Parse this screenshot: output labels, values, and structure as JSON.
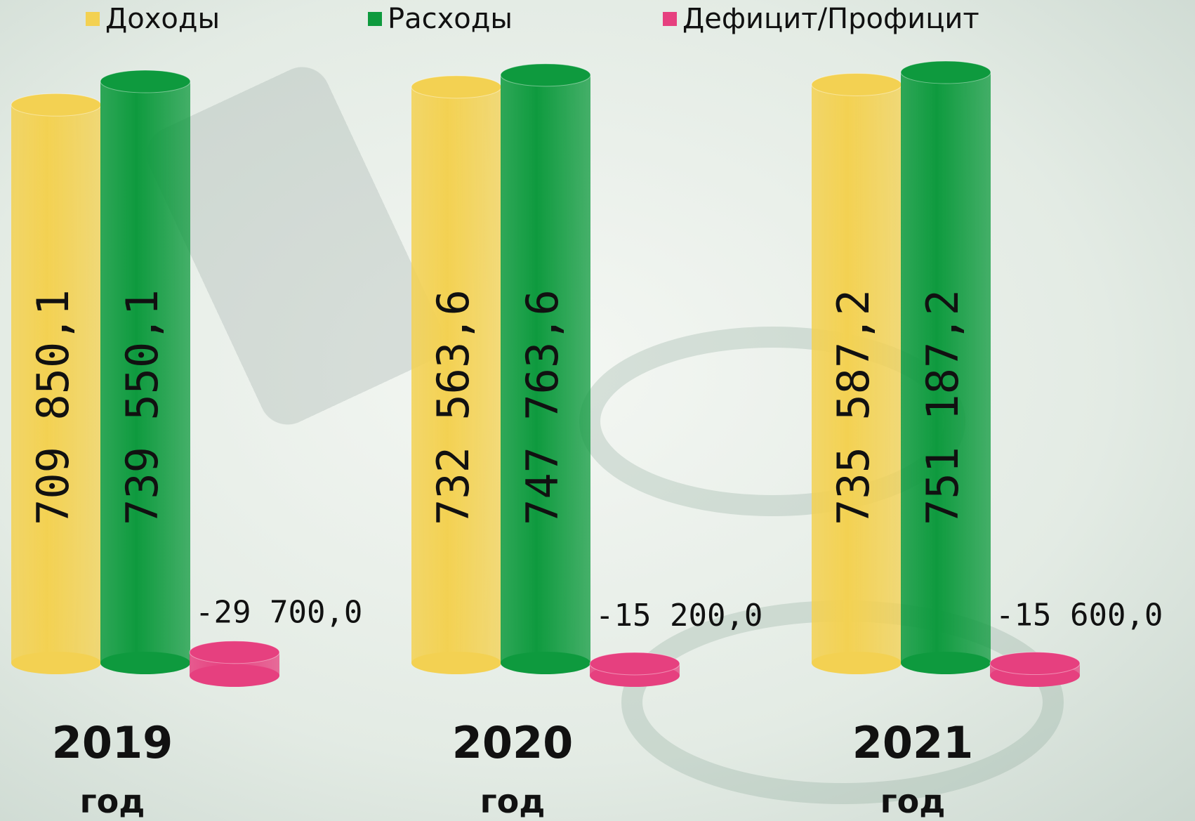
{
  "chart_data": {
    "type": "bar",
    "categories": [
      "2019\nгод",
      "2020\nгод",
      "2021\nгод"
    ],
    "series": [
      {
        "name": "Доходы",
        "color": "#f3d152",
        "values": [
          709850.1,
          732563.6,
          735587.2
        ],
        "value_labels": [
          "709 850,1",
          "732 563,6",
          "735 587,2"
        ]
      },
      {
        "name": "Расходы",
        "color": "#0e9a3e",
        "values": [
          739550.1,
          747763.6,
          751187.2
        ],
        "value_labels": [
          "739 550,1",
          "747 763,6",
          "751 187,2"
        ]
      },
      {
        "name": "Дефицит/Профицит",
        "color": "#e6407f",
        "values": [
          -29700.0,
          -15200.0,
          -15600.0
        ],
        "value_labels": [
          "-29 700,0",
          "-15 200,0",
          "-15 600,0"
        ]
      }
    ]
  }
}
